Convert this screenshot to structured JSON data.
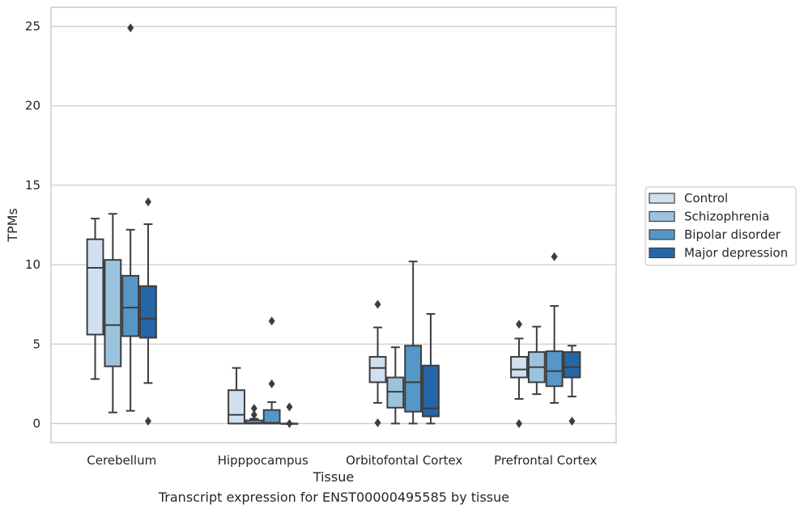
{
  "chart_data": {
    "type": "box",
    "xlabel": "Tissue",
    "ylabel": "TPMs",
    "caption": "Transcript expression for ENST00000495585 by tissue",
    "ylim": [
      -1.2,
      26.2
    ],
    "yticks": [
      0,
      5,
      10,
      15,
      20,
      25
    ],
    "grid": "horizontal",
    "legend_position": "right",
    "categories": [
      "Cerebellum",
      "Hipppocampus",
      "Orbitofontal Cortex",
      "Prefrontal Cortex"
    ],
    "series": [
      {
        "name": "Control",
        "color": "#d1e0f0",
        "boxes": [
          {
            "whislo": 2.8,
            "q1": 5.6,
            "med": 9.8,
            "q3": 11.6,
            "whishi": 12.9,
            "fliers": []
          },
          {
            "whislo": 0.0,
            "q1": 0.0,
            "med": 0.55,
            "q3": 2.1,
            "whishi": 3.5,
            "fliers": []
          },
          {
            "whislo": 1.3,
            "q1": 2.6,
            "med": 3.5,
            "q3": 4.2,
            "whishi": 6.05,
            "fliers": [
              7.5,
              0.05
            ]
          },
          {
            "whislo": 1.55,
            "q1": 2.9,
            "med": 3.4,
            "q3": 4.2,
            "whishi": 5.35,
            "fliers": [
              6.25,
              0.0
            ]
          }
        ]
      },
      {
        "name": "Schizophrenia",
        "color": "#9cc3de",
        "boxes": [
          {
            "whislo": 0.7,
            "q1": 3.6,
            "med": 6.2,
            "q3": 10.3,
            "whishi": 13.2,
            "fliers": []
          },
          {
            "whislo": 0.0,
            "q1": 0.0,
            "med": 0.05,
            "q3": 0.2,
            "whishi": 0.3,
            "fliers": [
              0.95,
              0.55
            ]
          },
          {
            "whislo": 0.0,
            "q1": 1.0,
            "med": 2.0,
            "q3": 2.9,
            "whishi": 4.8,
            "fliers": []
          },
          {
            "whislo": 1.85,
            "q1": 2.6,
            "med": 3.55,
            "q3": 4.5,
            "whishi": 6.1,
            "fliers": []
          }
        ]
      },
      {
        "name": "Bipolar disorder",
        "color": "#5598c8",
        "boxes": [
          {
            "whislo": 0.8,
            "q1": 5.5,
            "med": 7.3,
            "q3": 9.3,
            "whishi": 12.2,
            "fliers": [
              24.9
            ]
          },
          {
            "whislo": 0.0,
            "q1": 0.0,
            "med": 0.05,
            "q3": 0.85,
            "whishi": 1.35,
            "fliers": [
              6.45,
              2.5
            ]
          },
          {
            "whislo": 0.0,
            "q1": 0.75,
            "med": 2.6,
            "q3": 4.9,
            "whishi": 10.2,
            "fliers": []
          },
          {
            "whislo": 1.3,
            "q1": 2.35,
            "med": 3.3,
            "q3": 4.55,
            "whishi": 7.4,
            "fliers": [
              10.5
            ]
          }
        ]
      },
      {
        "name": "Major depression",
        "color": "#2566a8",
        "boxes": [
          {
            "whislo": 2.55,
            "q1": 5.4,
            "med": 6.6,
            "q3": 8.65,
            "whishi": 12.55,
            "fliers": [
              13.95,
              0.15
            ]
          },
          {
            "whislo": 0.0,
            "q1": 0.0,
            "med": 0.0,
            "q3": 0.0,
            "whishi": 0.0,
            "fliers": [
              1.05,
              0.0
            ]
          },
          {
            "whislo": 0.0,
            "q1": 0.45,
            "med": 0.95,
            "q3": 3.65,
            "whishi": 6.9,
            "fliers": []
          },
          {
            "whislo": 1.7,
            "q1": 2.9,
            "med": 3.55,
            "q3": 4.5,
            "whishi": 4.9,
            "fliers": [
              0.15
            ]
          }
        ]
      }
    ]
  }
}
